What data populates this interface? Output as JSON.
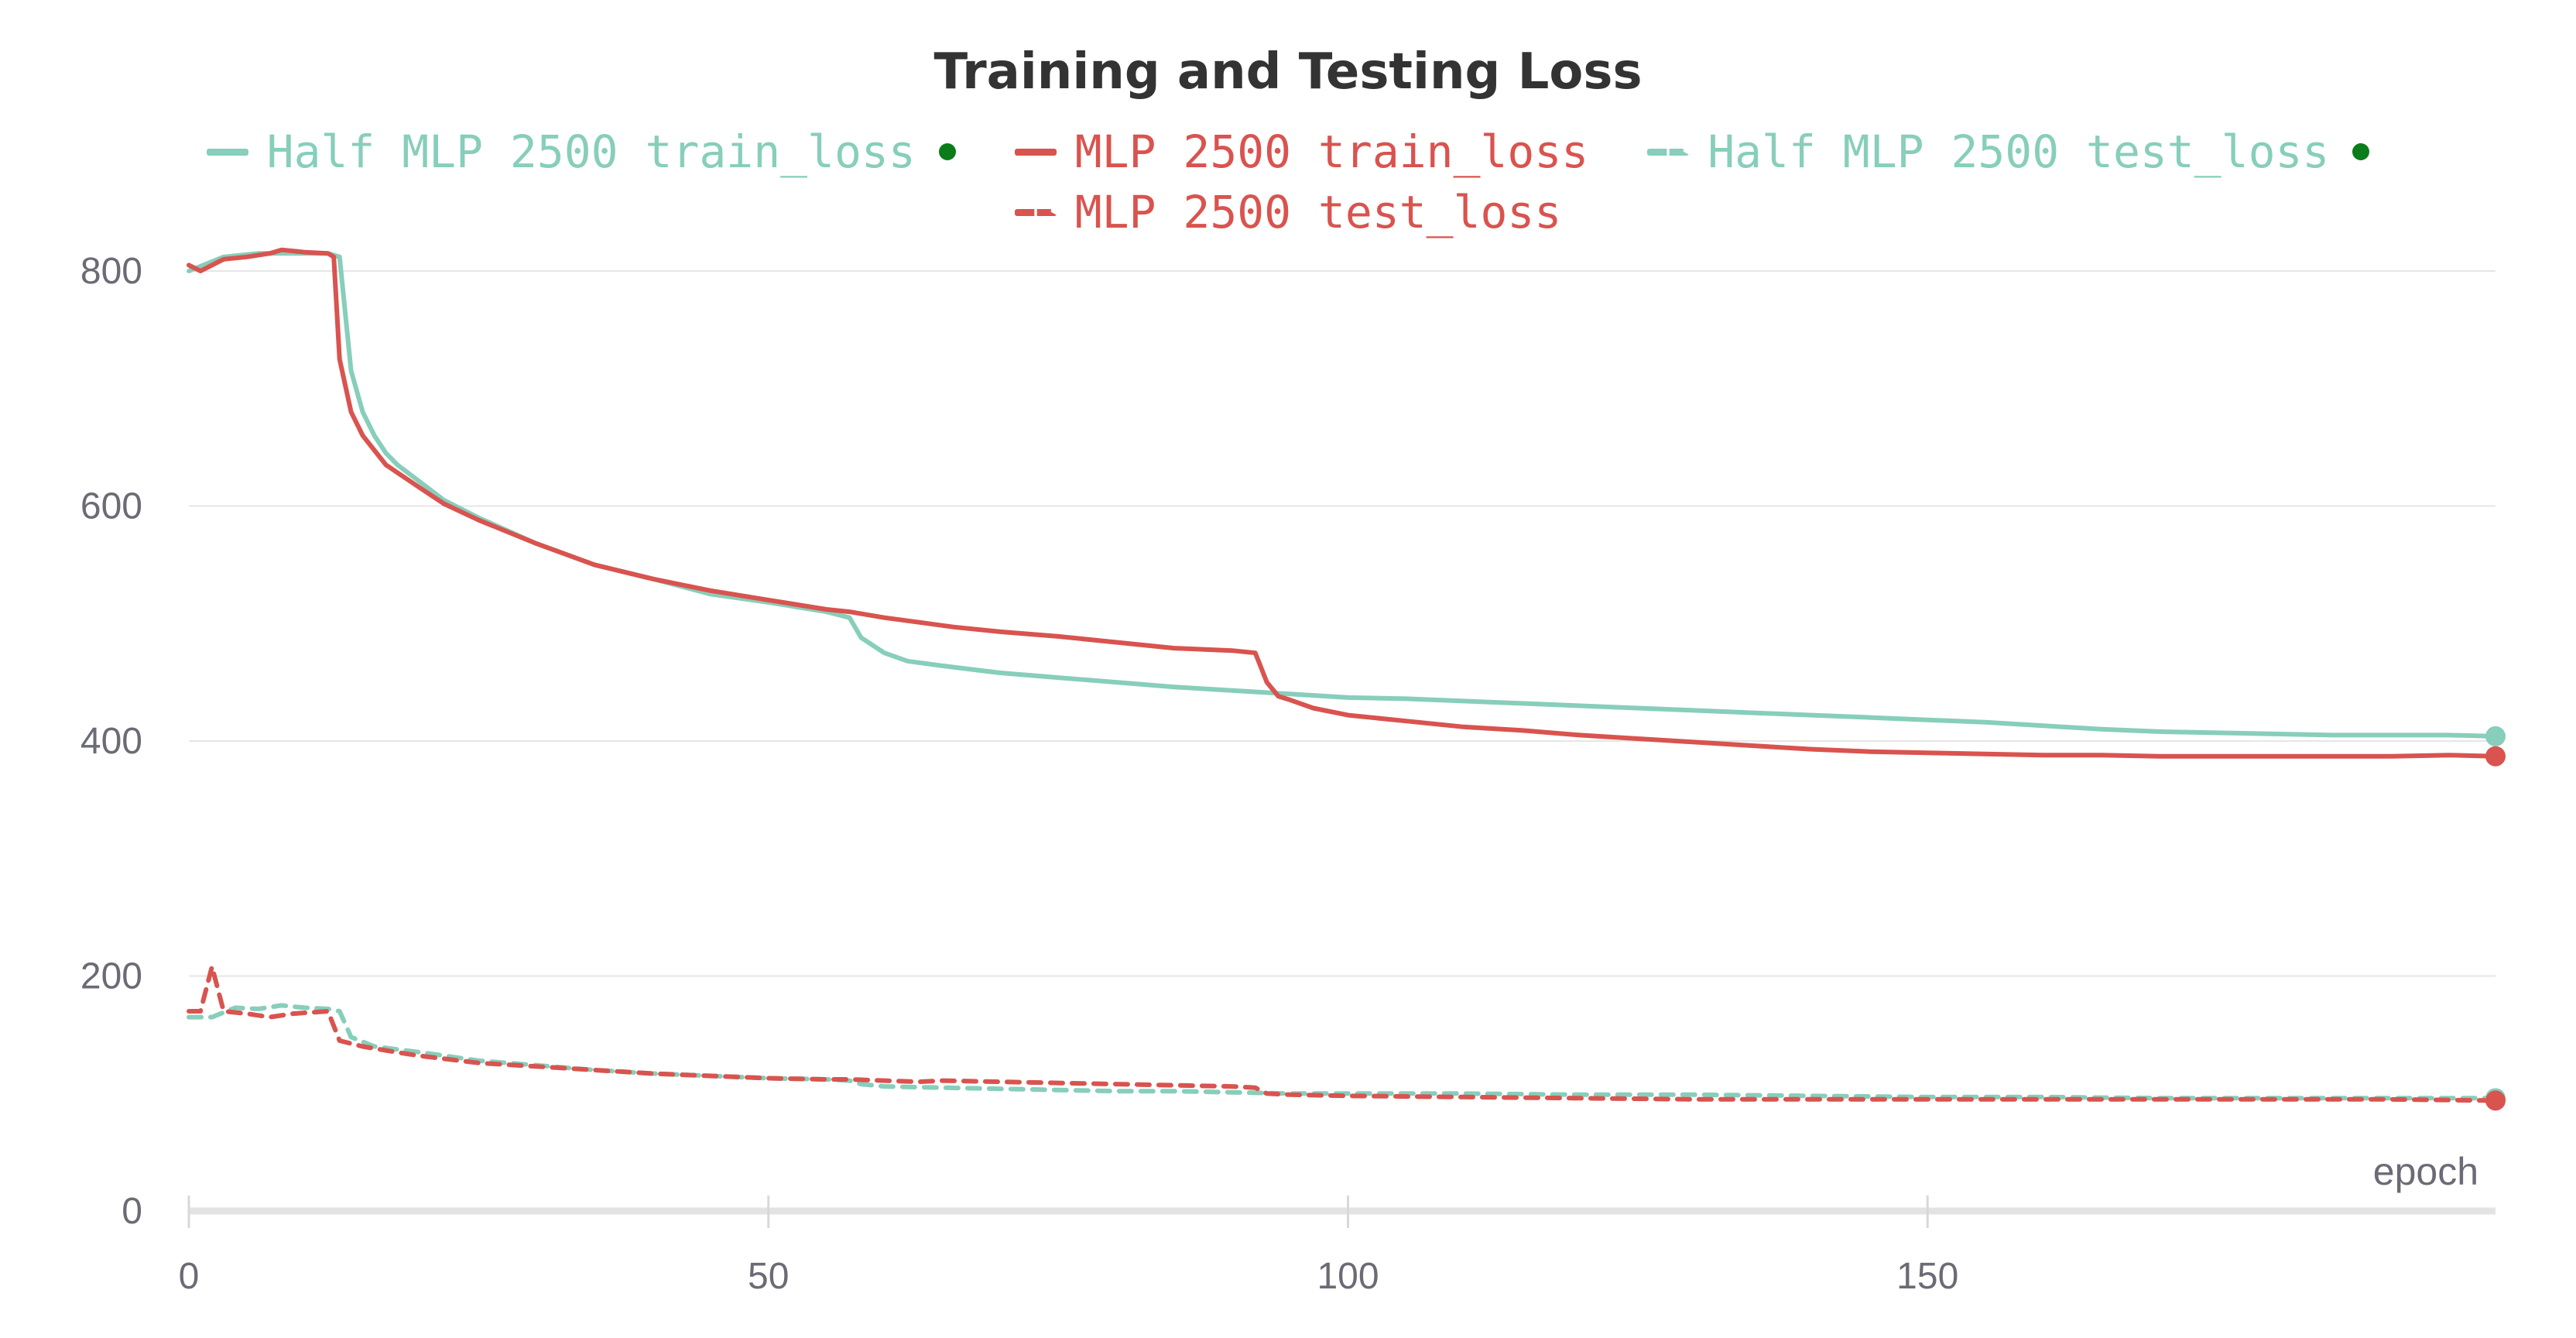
{
  "chart_data": {
    "type": "line",
    "title": "Training and Testing Loss",
    "xlabel": "epoch",
    "ylabel": "",
    "xlim": [
      0,
      199
    ],
    "ylim": [
      0,
      800
    ],
    "xticks": [
      0,
      50,
      100,
      150
    ],
    "yticks": [
      0,
      200,
      400,
      600,
      800
    ],
    "grid": "horizontal",
    "legend_position": "top",
    "series": [
      {
        "name": "Half MLP 2500 train_loss",
        "color": "#87cebb",
        "style": "solid",
        "marker_dot": true,
        "points": [
          [
            0,
            800
          ],
          [
            3,
            812
          ],
          [
            6,
            815
          ],
          [
            8,
            815
          ],
          [
            10,
            815
          ],
          [
            12,
            815
          ],
          [
            13,
            812
          ],
          [
            14,
            715
          ],
          [
            15,
            680
          ],
          [
            16,
            660
          ],
          [
            17,
            645
          ],
          [
            18,
            635
          ],
          [
            20,
            620
          ],
          [
            22,
            605
          ],
          [
            25,
            590
          ],
          [
            30,
            568
          ],
          [
            35,
            550
          ],
          [
            40,
            538
          ],
          [
            45,
            525
          ],
          [
            50,
            518
          ],
          [
            55,
            510
          ],
          [
            57,
            505
          ],
          [
            58,
            488
          ],
          [
            60,
            475
          ],
          [
            62,
            468
          ],
          [
            65,
            464
          ],
          [
            70,
            458
          ],
          [
            75,
            454
          ],
          [
            80,
            450
          ],
          [
            85,
            446
          ],
          [
            90,
            443
          ],
          [
            95,
            440
          ],
          [
            100,
            437
          ],
          [
            105,
            436
          ],
          [
            110,
            434
          ],
          [
            115,
            432
          ],
          [
            120,
            430
          ],
          [
            125,
            428
          ],
          [
            130,
            426
          ],
          [
            135,
            424
          ],
          [
            140,
            422
          ],
          [
            145,
            420
          ],
          [
            150,
            418
          ],
          [
            155,
            416
          ],
          [
            160,
            413
          ],
          [
            165,
            410
          ],
          [
            170,
            408
          ],
          [
            175,
            407
          ],
          [
            180,
            406
          ],
          [
            185,
            405
          ],
          [
            190,
            405
          ],
          [
            195,
            405
          ],
          [
            199,
            404
          ]
        ]
      },
      {
        "name": "MLP 2500 train_loss",
        "color": "#d9534f",
        "style": "solid",
        "marker_dot": false,
        "points": [
          [
            0,
            805
          ],
          [
            1,
            800
          ],
          [
            3,
            810
          ],
          [
            5,
            812
          ],
          [
            7,
            815
          ],
          [
            8,
            818
          ],
          [
            10,
            816
          ],
          [
            12,
            815
          ],
          [
            12.5,
            812
          ],
          [
            13,
            725
          ],
          [
            14,
            680
          ],
          [
            15,
            660
          ],
          [
            17,
            635
          ],
          [
            20,
            615
          ],
          [
            22,
            602
          ],
          [
            25,
            588
          ],
          [
            30,
            568
          ],
          [
            35,
            550
          ],
          [
            40,
            538
          ],
          [
            45,
            528
          ],
          [
            50,
            520
          ],
          [
            55,
            512
          ],
          [
            57,
            510
          ],
          [
            60,
            505
          ],
          [
            63,
            501
          ],
          [
            66,
            497
          ],
          [
            70,
            493
          ],
          [
            75,
            489
          ],
          [
            80,
            484
          ],
          [
            85,
            479
          ],
          [
            90,
            477
          ],
          [
            92,
            475
          ],
          [
            93,
            450
          ],
          [
            94,
            438
          ],
          [
            95,
            435
          ],
          [
            97,
            428
          ],
          [
            100,
            422
          ],
          [
            105,
            417
          ],
          [
            110,
            412
          ],
          [
            115,
            409
          ],
          [
            120,
            405
          ],
          [
            125,
            402
          ],
          [
            130,
            399
          ],
          [
            135,
            396
          ],
          [
            140,
            393
          ],
          [
            145,
            391
          ],
          [
            150,
            390
          ],
          [
            155,
            389
          ],
          [
            160,
            388
          ],
          [
            165,
            388
          ],
          [
            170,
            387
          ],
          [
            175,
            387
          ],
          [
            180,
            387
          ],
          [
            185,
            387
          ],
          [
            190,
            387
          ],
          [
            195,
            388
          ],
          [
            199,
            387
          ]
        ]
      },
      {
        "name": "Half MLP 2500 test_loss",
        "color": "#87cebb",
        "style": "dashed",
        "marker_dot": true,
        "points": [
          [
            0,
            165
          ],
          [
            2,
            165
          ],
          [
            4,
            173
          ],
          [
            6,
            172
          ],
          [
            8,
            175
          ],
          [
            10,
            173
          ],
          [
            12,
            172
          ],
          [
            13,
            170
          ],
          [
            14,
            148
          ],
          [
            16,
            140
          ],
          [
            20,
            135
          ],
          [
            25,
            128
          ],
          [
            30,
            124
          ],
          [
            35,
            120
          ],
          [
            40,
            117
          ],
          [
            45,
            115
          ],
          [
            50,
            113
          ],
          [
            55,
            112
          ],
          [
            57,
            111
          ],
          [
            58,
            108
          ],
          [
            60,
            106
          ],
          [
            65,
            105
          ],
          [
            70,
            104
          ],
          [
            75,
            103
          ],
          [
            80,
            102
          ],
          [
            85,
            102
          ],
          [
            90,
            101
          ],
          [
            95,
            100
          ],
          [
            100,
            100
          ],
          [
            110,
            100
          ],
          [
            120,
            99
          ],
          [
            130,
            99
          ],
          [
            140,
            98
          ],
          [
            150,
            97
          ],
          [
            160,
            97
          ],
          [
            170,
            96
          ],
          [
            180,
            96
          ],
          [
            190,
            96
          ],
          [
            199,
            96
          ]
        ]
      },
      {
        "name": "MLP 2500 test_loss",
        "color": "#d9534f",
        "style": "dashed",
        "marker_dot": false,
        "points": [
          [
            0,
            170
          ],
          [
            1,
            170
          ],
          [
            2,
            208
          ],
          [
            3,
            170
          ],
          [
            5,
            168
          ],
          [
            7,
            165
          ],
          [
            9,
            168
          ],
          [
            12,
            170
          ],
          [
            13,
            145
          ],
          [
            15,
            140
          ],
          [
            18,
            135
          ],
          [
            20,
            132
          ],
          [
            25,
            126
          ],
          [
            30,
            123
          ],
          [
            35,
            120
          ],
          [
            40,
            117
          ],
          [
            45,
            115
          ],
          [
            50,
            113
          ],
          [
            55,
            112
          ],
          [
            57,
            112
          ],
          [
            60,
            111
          ],
          [
            63,
            110
          ],
          [
            65,
            111
          ],
          [
            70,
            110
          ],
          [
            75,
            109
          ],
          [
            80,
            108
          ],
          [
            85,
            107
          ],
          [
            90,
            106
          ],
          [
            92,
            105
          ],
          [
            93,
            100
          ],
          [
            95,
            99
          ],
          [
            100,
            98
          ],
          [
            110,
            97
          ],
          [
            120,
            96
          ],
          [
            130,
            95
          ],
          [
            140,
            95
          ],
          [
            150,
            95
          ],
          [
            160,
            95
          ],
          [
            170,
            95
          ],
          [
            180,
            95
          ],
          [
            190,
            95
          ],
          [
            199,
            94
          ]
        ]
      }
    ]
  },
  "legend": {
    "row1": [
      "Half MLP 2500 train_loss",
      "MLP 2500 train_loss",
      "Half MLP 2500 test_loss"
    ],
    "row2": [
      "MLP 2500 test_loss"
    ],
    "status_dot_color": "#0a7d1a"
  }
}
